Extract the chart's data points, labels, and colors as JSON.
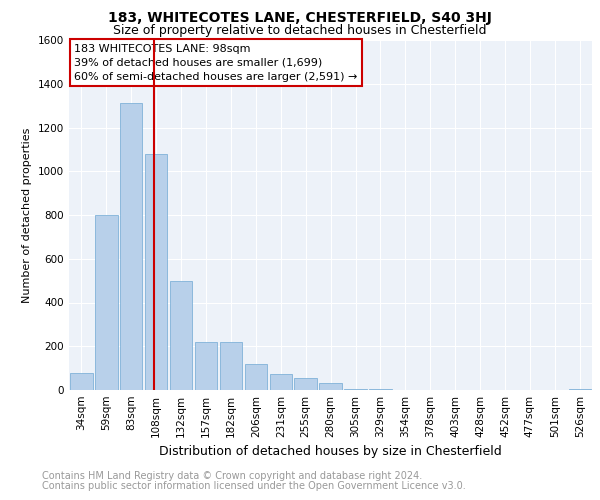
{
  "title1": "183, WHITECOTES LANE, CHESTERFIELD, S40 3HJ",
  "title2": "Size of property relative to detached houses in Chesterfield",
  "xlabel": "Distribution of detached houses by size in Chesterfield",
  "ylabel": "Number of detached properties",
  "categories": [
    "34sqm",
    "59sqm",
    "83sqm",
    "108sqm",
    "132sqm",
    "157sqm",
    "182sqm",
    "206sqm",
    "231sqm",
    "255sqm",
    "280sqm",
    "305sqm",
    "329sqm",
    "354sqm",
    "378sqm",
    "403sqm",
    "428sqm",
    "452sqm",
    "477sqm",
    "501sqm",
    "526sqm"
  ],
  "values": [
    80,
    800,
    1310,
    1080,
    500,
    220,
    220,
    120,
    75,
    55,
    30,
    5,
    5,
    0,
    0,
    0,
    0,
    0,
    0,
    0,
    5
  ],
  "bar_color": "#b8d0ea",
  "bar_edge_color": "#6fa8d4",
  "vline_color": "#cc0000",
  "annotation_text": "183 WHITECOTES LANE: 98sqm\n39% of detached houses are smaller (1,699)\n60% of semi-detached houses are larger (2,591) →",
  "annotation_box_color": "#ffffff",
  "annotation_box_edge": "#cc0000",
  "footnote1": "Contains HM Land Registry data © Crown copyright and database right 2024.",
  "footnote2": "Contains public sector information licensed under the Open Government Licence v3.0.",
  "ylim": [
    0,
    1600
  ],
  "yticks": [
    0,
    200,
    400,
    600,
    800,
    1000,
    1200,
    1400,
    1600
  ],
  "bg_color": "#edf2f9",
  "grid_color": "#ffffff",
  "title1_fontsize": 10,
  "title2_fontsize": 9,
  "xlabel_fontsize": 9,
  "ylabel_fontsize": 8,
  "tick_fontsize": 7.5,
  "footnote_fontsize": 7,
  "annotation_fontsize": 8
}
